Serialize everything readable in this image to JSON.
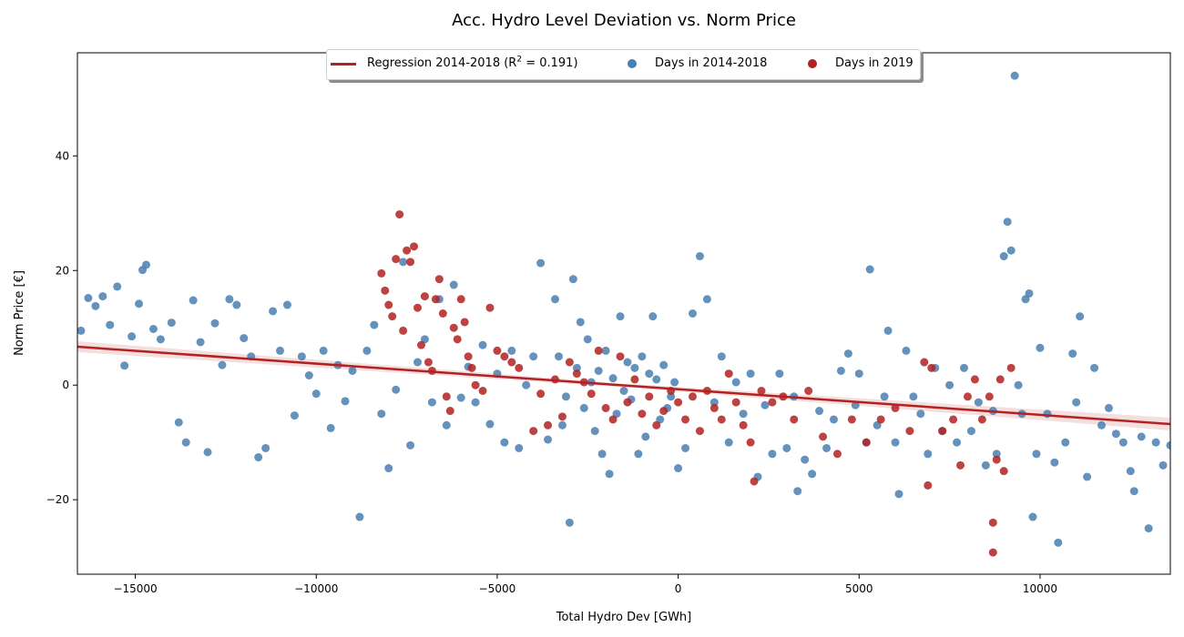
{
  "colors": {
    "reg": "#b22222",
    "a": "#4a7fb0",
    "b": "#b22222"
  },
  "legend": {
    "reg_prefix": "Regression 2014-2018 (R",
    "reg_sup": "2",
    "reg_suffix": " = 0.191)"
  },
  "chart_data": {
    "type": "scatter",
    "title": "Acc. Hydro Level Deviation vs. Norm Price",
    "xlabel": "Total Hydro Dev [GWh]",
    "ylabel": "Norm Price [€]",
    "xlim": [
      -16600,
      13600
    ],
    "ylim": [
      -33,
      58
    ],
    "xticks": [
      -15000,
      -10000,
      -5000,
      0,
      5000,
      10000
    ],
    "yticks": [
      -20,
      0,
      20,
      40
    ],
    "xtick_labels": [
      "−15000",
      "−10000",
      "−5000",
      "0",
      "5000",
      "10000"
    ],
    "ytick_labels": [
      "−20",
      "0",
      "20",
      "40"
    ],
    "legend_position": "top-center",
    "regression": {
      "name": "Regression 2014-2018",
      "r2": 0.191,
      "x": [
        -16600,
        13600
      ],
      "y": [
        6.7,
        -6.8
      ]
    },
    "series": [
      {
        "name": "Days in 2014-2018",
        "color": "#4a7fb0",
        "points": [
          [
            -16500,
            9.5
          ],
          [
            -16300,
            15.2
          ],
          [
            -16100,
            13.8
          ],
          [
            -15900,
            15.5
          ],
          [
            -15700,
            10.5
          ],
          [
            -15500,
            17.2
          ],
          [
            -15300,
            3.4
          ],
          [
            -15100,
            8.5
          ],
          [
            -14900,
            14.2
          ],
          [
            -14800,
            20.1
          ],
          [
            -14700,
            21
          ],
          [
            -14500,
            9.8
          ],
          [
            -14300,
            8
          ],
          [
            -14000,
            10.9
          ],
          [
            -13800,
            -6.5
          ],
          [
            -13600,
            -10
          ],
          [
            -13400,
            14.8
          ],
          [
            -13200,
            7.5
          ],
          [
            -13000,
            -11.7
          ],
          [
            -12800,
            10.8
          ],
          [
            -12600,
            3.5
          ],
          [
            -12400,
            15
          ],
          [
            -12200,
            14
          ],
          [
            -12000,
            8.2
          ],
          [
            -11800,
            5
          ],
          [
            -11600,
            -12.6
          ],
          [
            -11400,
            -11
          ],
          [
            -11200,
            12.9
          ],
          [
            -11000,
            6
          ],
          [
            -10800,
            14
          ],
          [
            -10600,
            -5.3
          ],
          [
            -10400,
            5
          ],
          [
            -10200,
            1.7
          ],
          [
            -10000,
            -1.5
          ],
          [
            -9800,
            6
          ],
          [
            -9600,
            -7.5
          ],
          [
            -9400,
            3.5
          ],
          [
            -9200,
            -2.8
          ],
          [
            -9000,
            2.5
          ],
          [
            -8800,
            -23
          ],
          [
            -8600,
            6
          ],
          [
            -8400,
            10.5
          ],
          [
            -8200,
            -5
          ],
          [
            -8000,
            -14.5
          ],
          [
            -7800,
            -0.8
          ],
          [
            -7600,
            21.5
          ],
          [
            -7400,
            -10.5
          ],
          [
            -7200,
            4
          ],
          [
            -7000,
            8
          ],
          [
            -6800,
            -3
          ],
          [
            -6600,
            15
          ],
          [
            -6400,
            -7
          ],
          [
            -6200,
            17.5
          ],
          [
            -6000,
            -2.2
          ],
          [
            -5800,
            3.2
          ],
          [
            -5600,
            -3
          ],
          [
            -5400,
            7
          ],
          [
            -5200,
            -6.8
          ],
          [
            -5000,
            2
          ],
          [
            -4800,
            -10
          ],
          [
            -4600,
            6
          ],
          [
            -4400,
            -11
          ],
          [
            -4200,
            0
          ],
          [
            -4000,
            5
          ],
          [
            -3800,
            21.3
          ],
          [
            -3600,
            -9.5
          ],
          [
            -3400,
            15
          ],
          [
            -3300,
            5
          ],
          [
            -3200,
            -7
          ],
          [
            -3100,
            -2
          ],
          [
            -3000,
            -24
          ],
          [
            -2900,
            18.5
          ],
          [
            -2800,
            3
          ],
          [
            -2700,
            11
          ],
          [
            -2600,
            -4
          ],
          [
            -2500,
            8
          ],
          [
            -2400,
            0.5
          ],
          [
            -2300,
            -8
          ],
          [
            -2200,
            2.5
          ],
          [
            -2100,
            -12
          ],
          [
            -2000,
            6
          ],
          [
            -1900,
            -15.5
          ],
          [
            -1800,
            1.2
          ],
          [
            -1700,
            -5
          ],
          [
            -1600,
            12
          ],
          [
            -1500,
            -1
          ],
          [
            -1400,
            4
          ],
          [
            -1300,
            -2.5
          ],
          [
            -1200,
            3
          ],
          [
            -1100,
            -12
          ],
          [
            -1000,
            5
          ],
          [
            -900,
            -9
          ],
          [
            -800,
            2
          ],
          [
            -700,
            12
          ],
          [
            -600,
            1
          ],
          [
            -500,
            -6
          ],
          [
            -400,
            3.5
          ],
          [
            -300,
            -4
          ],
          [
            -200,
            -2
          ],
          [
            -100,
            0.5
          ],
          [
            0,
            -14.5
          ],
          [
            200,
            -11
          ],
          [
            400,
            12.5
          ],
          [
            600,
            22.5
          ],
          [
            800,
            15
          ],
          [
            1000,
            -3
          ],
          [
            1200,
            5
          ],
          [
            1400,
            -10
          ],
          [
            1600,
            0.5
          ],
          [
            1800,
            -5
          ],
          [
            2000,
            2
          ],
          [
            2200,
            -16
          ],
          [
            2400,
            -3.5
          ],
          [
            2600,
            -12
          ],
          [
            2800,
            2
          ],
          [
            3000,
            -11
          ],
          [
            3200,
            -2
          ],
          [
            3300,
            -18.5
          ],
          [
            3500,
            -13
          ],
          [
            3700,
            -15.5
          ],
          [
            3900,
            -4.5
          ],
          [
            4100,
            -11
          ],
          [
            4300,
            -6
          ],
          [
            4500,
            2.5
          ],
          [
            4700,
            5.5
          ],
          [
            4900,
            -3.5
          ],
          [
            5000,
            2
          ],
          [
            5200,
            -10
          ],
          [
            5300,
            20.2
          ],
          [
            5500,
            -7
          ],
          [
            5700,
            -2
          ],
          [
            5800,
            9.5
          ],
          [
            6000,
            -10
          ],
          [
            6100,
            -19
          ],
          [
            6300,
            6
          ],
          [
            6500,
            -2
          ],
          [
            6700,
            -5
          ],
          [
            6900,
            -12
          ],
          [
            7100,
            3
          ],
          [
            7300,
            -8
          ],
          [
            7500,
            0
          ],
          [
            7700,
            -10
          ],
          [
            7900,
            3
          ],
          [
            8100,
            -8
          ],
          [
            8300,
            -3
          ],
          [
            8500,
            -14
          ],
          [
            8700,
            -4.5
          ],
          [
            8800,
            -12
          ],
          [
            9000,
            22.5
          ],
          [
            9100,
            28.5
          ],
          [
            9200,
            23.5
          ],
          [
            9300,
            54
          ],
          [
            9400,
            0
          ],
          [
            9500,
            -5
          ],
          [
            9600,
            15
          ],
          [
            9700,
            16
          ],
          [
            9800,
            -23
          ],
          [
            9900,
            -12
          ],
          [
            10000,
            6.5
          ],
          [
            10200,
            -5
          ],
          [
            10400,
            -13.5
          ],
          [
            10500,
            -27.5
          ],
          [
            10700,
            -10
          ],
          [
            10900,
            5.5
          ],
          [
            11000,
            -3
          ],
          [
            11100,
            12
          ],
          [
            11300,
            -16
          ],
          [
            11500,
            3
          ],
          [
            11700,
            -7
          ],
          [
            11900,
            -4
          ],
          [
            12100,
            -8.5
          ],
          [
            12300,
            -10
          ],
          [
            12500,
            -15
          ],
          [
            12600,
            -18.5
          ],
          [
            12800,
            -9
          ],
          [
            13000,
            -25
          ],
          [
            13200,
            -10
          ],
          [
            13400,
            -14
          ],
          [
            13600,
            -10.5
          ]
        ]
      },
      {
        "name": "Days in 2019",
        "color": "#b22222",
        "points": [
          [
            -8200,
            19.5
          ],
          [
            -8100,
            16.5
          ],
          [
            -8000,
            14
          ],
          [
            -7900,
            12
          ],
          [
            -7800,
            22
          ],
          [
            -7700,
            29.8
          ],
          [
            -7600,
            9.5
          ],
          [
            -7500,
            23.5
          ],
          [
            -7400,
            21.5
          ],
          [
            -7300,
            24.2
          ],
          [
            -7200,
            13.5
          ],
          [
            -7100,
            7
          ],
          [
            -7000,
            15.5
          ],
          [
            -6900,
            4
          ],
          [
            -6800,
            2.5
          ],
          [
            -6700,
            15
          ],
          [
            -6600,
            18.5
          ],
          [
            -6500,
            12.5
          ],
          [
            -6400,
            -2
          ],
          [
            -6300,
            -4.5
          ],
          [
            -6200,
            10
          ],
          [
            -6100,
            8
          ],
          [
            -6000,
            15
          ],
          [
            -5900,
            11
          ],
          [
            -5800,
            5
          ],
          [
            -5700,
            3
          ],
          [
            -5600,
            0
          ],
          [
            -5400,
            -1
          ],
          [
            -5200,
            13.5
          ],
          [
            -5000,
            6
          ],
          [
            -4800,
            5
          ],
          [
            -4600,
            4
          ],
          [
            -4400,
            3
          ],
          [
            -4000,
            -8
          ],
          [
            -3800,
            -1.5
          ],
          [
            -3600,
            -7
          ],
          [
            -3400,
            1
          ],
          [
            -3200,
            -5.5
          ],
          [
            -3000,
            4
          ],
          [
            -2800,
            2
          ],
          [
            -2600,
            0.5
          ],
          [
            -2400,
            -1.5
          ],
          [
            -2200,
            6
          ],
          [
            -2000,
            -4
          ],
          [
            -1800,
            -6
          ],
          [
            -1600,
            5
          ],
          [
            -1400,
            -3
          ],
          [
            -1200,
            1
          ],
          [
            -1000,
            -5
          ],
          [
            -800,
            -2
          ],
          [
            -600,
            -7
          ],
          [
            -400,
            -4.5
          ],
          [
            -200,
            -1
          ],
          [
            0,
            -3
          ],
          [
            200,
            -6
          ],
          [
            400,
            -2
          ],
          [
            600,
            -8
          ],
          [
            800,
            -1
          ],
          [
            1000,
            -4
          ],
          [
            1200,
            -6
          ],
          [
            1400,
            2
          ],
          [
            1600,
            -3
          ],
          [
            1800,
            -7
          ],
          [
            2000,
            -10
          ],
          [
            2100,
            -16.8
          ],
          [
            2300,
            -1
          ],
          [
            2600,
            -3
          ],
          [
            2900,
            -2
          ],
          [
            3200,
            -6
          ],
          [
            3600,
            -1
          ],
          [
            4000,
            -9
          ],
          [
            4400,
            -12
          ],
          [
            4800,
            -6
          ],
          [
            5200,
            -10
          ],
          [
            5600,
            -6
          ],
          [
            6000,
            -4
          ],
          [
            6400,
            -8
          ],
          [
            6800,
            4
          ],
          [
            6900,
            -17.5
          ],
          [
            7000,
            3
          ],
          [
            7300,
            -8
          ],
          [
            7600,
            -6
          ],
          [
            7800,
            -14
          ],
          [
            8000,
            -2
          ],
          [
            8200,
            1
          ],
          [
            8400,
            -6
          ],
          [
            8600,
            -2
          ],
          [
            8700,
            -29.2
          ],
          [
            8700,
            -24
          ],
          [
            8800,
            -13
          ],
          [
            8900,
            1
          ],
          [
            9000,
            -15
          ],
          [
            9200,
            3
          ]
        ]
      }
    ]
  }
}
